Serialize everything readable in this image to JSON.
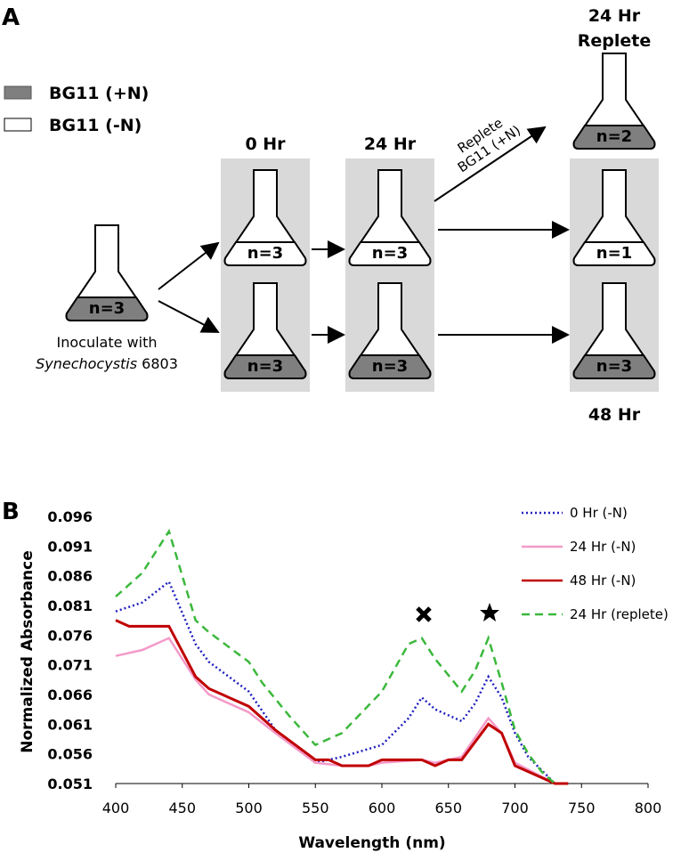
{
  "panel_a": {
    "label": "A",
    "legend": [
      "BG11 (+N)",
      "BG11 (-N)"
    ],
    "headers": {
      "h0": "0 Hr",
      "h24": "24 Hr",
      "replete": [
        "24 Hr",
        "Replete"
      ],
      "h48": "48 Hr"
    },
    "arrow_label": [
      "Replete",
      "BG11 (+N)"
    ],
    "inoculate": {
      "line1": "Inoculate with",
      "organism": "Synechocystis",
      "strain": " 6803"
    },
    "flasks": {
      "start": "n=3",
      "h0_minus": "n=3",
      "h0_plus": "n=3",
      "h24_minus": "n=3",
      "h24_plus": "n=3",
      "replete": "n=2",
      "h48_minus": "n=1",
      "h48_plus": "n=3"
    }
  },
  "chart_data": {
    "type": "line",
    "panel_label": "B",
    "x_label": "Wavelength (nm)",
    "y_label": "Normalized Absorbance",
    "xlim": [
      400,
      800
    ],
    "xticks": [
      400,
      450,
      500,
      550,
      600,
      650,
      700,
      750,
      800
    ],
    "ylim": [
      0.051,
      0.096
    ],
    "yticks": [
      0.051,
      0.056,
      0.061,
      0.066,
      0.071,
      0.076,
      0.081,
      0.086,
      0.091,
      0.096
    ],
    "series": [
      {
        "name": "0 Hr (-N)",
        "color": "#1f1fbf",
        "style": "dotted",
        "x": [
          400,
          420,
          440,
          460,
          470,
          500,
          520,
          550,
          570,
          600,
          620,
          630,
          640,
          660,
          670,
          680,
          690,
          700,
          710,
          730
        ],
        "values": [
          0.08,
          0.0815,
          0.085,
          0.0745,
          0.0715,
          0.0665,
          0.06,
          0.0545,
          0.0555,
          0.0575,
          0.062,
          0.0655,
          0.0635,
          0.0615,
          0.0645,
          0.069,
          0.0655,
          0.0595,
          0.0555,
          0.051
        ]
      },
      {
        "name": "24 Hr (-N)",
        "color": "#f49ac8",
        "style": "solid",
        "x": [
          400,
          420,
          440,
          460,
          470,
          500,
          520,
          550,
          570,
          590,
          600,
          630,
          640,
          660,
          680,
          690,
          700,
          730
        ],
        "values": [
          0.0725,
          0.0735,
          0.0755,
          0.0685,
          0.066,
          0.063,
          0.0595,
          0.0545,
          0.054,
          0.054,
          0.0545,
          0.055,
          0.0545,
          0.0555,
          0.062,
          0.0595,
          0.0545,
          0.051
        ]
      },
      {
        "name": "48 Hr (-N)",
        "color": "#c00000",
        "style": "solid",
        "x": [
          400,
          410,
          440,
          460,
          470,
          500,
          520,
          550,
          560,
          570,
          590,
          600,
          630,
          640,
          650,
          660,
          680,
          690,
          700,
          730,
          740
        ],
        "values": [
          0.0785,
          0.0775,
          0.0775,
          0.069,
          0.067,
          0.064,
          0.06,
          0.055,
          0.055,
          0.054,
          0.054,
          0.055,
          0.055,
          0.054,
          0.055,
          0.055,
          0.061,
          0.0595,
          0.054,
          0.051,
          0.051
        ]
      },
      {
        "name": "24 Hr (replete)",
        "color": "#3cb83c",
        "style": "dashed",
        "x": [
          400,
          420,
          440,
          460,
          470,
          500,
          510,
          530,
          550,
          570,
          600,
          620,
          630,
          640,
          660,
          670,
          680,
          690,
          700,
          710,
          720,
          730
        ],
        "values": [
          0.0825,
          0.0865,
          0.0935,
          0.0785,
          0.0765,
          0.0715,
          0.068,
          0.0625,
          0.0575,
          0.0595,
          0.0665,
          0.0745,
          0.0755,
          0.072,
          0.0665,
          0.07,
          0.0755,
          0.068,
          0.06,
          0.056,
          0.053,
          0.051
        ]
      }
    ]
  }
}
